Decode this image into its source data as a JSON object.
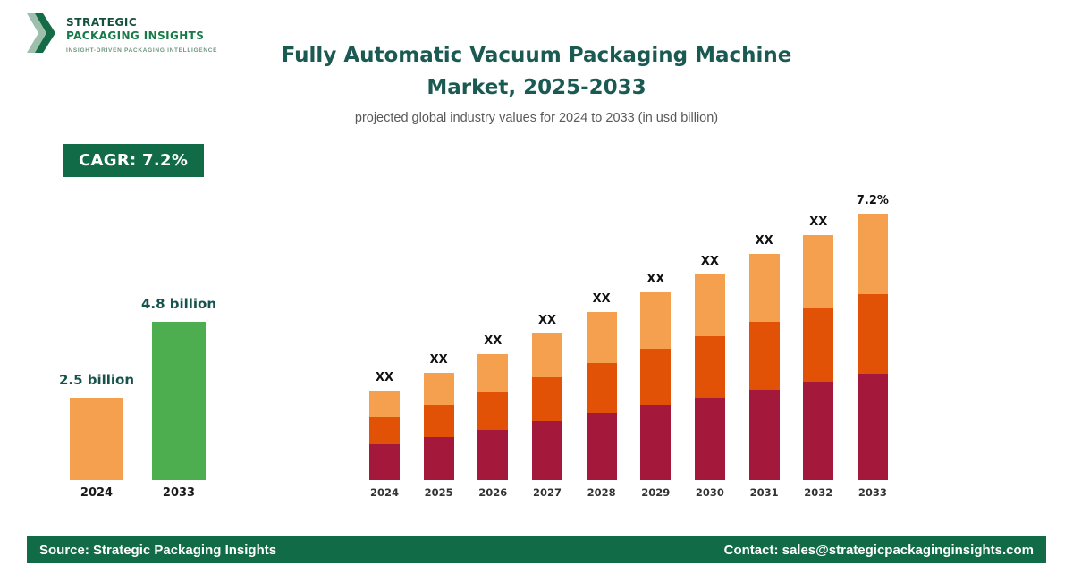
{
  "brand": {
    "name_line1": "STRATEGIC",
    "name_line2": "PACKAGING INSIGHTS",
    "tagline": "INSIGHT-DRIVEN PACKAGING INTELLIGENCE"
  },
  "header": {
    "title_line1": "Fully Automatic Vacuum Packaging Machine",
    "title_line2": "Market, 2025-2033",
    "subtitle": "projected global industry values for 2024 to 2033 (in usd billion)"
  },
  "cagr_badge": "CAGR: 7.2%",
  "footer": {
    "source": "Source: Strategic Packaging Insights",
    "contact": "Contact: sales@strategicpackaginginsights.com"
  },
  "colors": {
    "brand_green": "#106b46",
    "title_teal": "#1b5a52",
    "bar_light_orange": "#f4a04f",
    "bar_dark_orange": "#e25206",
    "bar_maroon": "#a4183c",
    "bar_green": "#4cae4f"
  },
  "chart_data": [
    {
      "type": "bar",
      "title": "Market size comparison 2024 vs 2033",
      "categories": [
        "2024",
        "2033"
      ],
      "values": [
        2.5,
        4.8
      ],
      "value_labels": [
        "2.5 billion",
        "4.8 billion"
      ],
      "bar_colors": [
        "#f4a04f",
        "#4cae4f"
      ],
      "ylabel": "usd billion",
      "grid": false,
      "legend": false
    },
    {
      "type": "stacked-bar",
      "title": "Projected market values 2024-2033 (values masked)",
      "categories": [
        "2024",
        "2025",
        "2026",
        "2027",
        "2028",
        "2029",
        "2030",
        "2031",
        "2032",
        "2033"
      ],
      "bar_labels": [
        "XX",
        "XX",
        "XX",
        "XX",
        "XX",
        "XX",
        "XX",
        "XX",
        "XX",
        "7.2%"
      ],
      "unit": "usd billion",
      "grid": false,
      "legend": false,
      "series": [
        {
          "name": "bottom",
          "color": "#a4183c",
          "values": [
            40,
            48,
            56,
            66,
            75,
            84,
            92,
            101,
            110,
            119
          ]
        },
        {
          "name": "middle",
          "color": "#e25206",
          "values": [
            30,
            36,
            42,
            49,
            56,
            63,
            69,
            76,
            82,
            89
          ]
        },
        {
          "name": "top",
          "color": "#f4a04f",
          "values": [
            30,
            36,
            43,
            49,
            57,
            63,
            69,
            76,
            82,
            90
          ]
        }
      ]
    }
  ]
}
